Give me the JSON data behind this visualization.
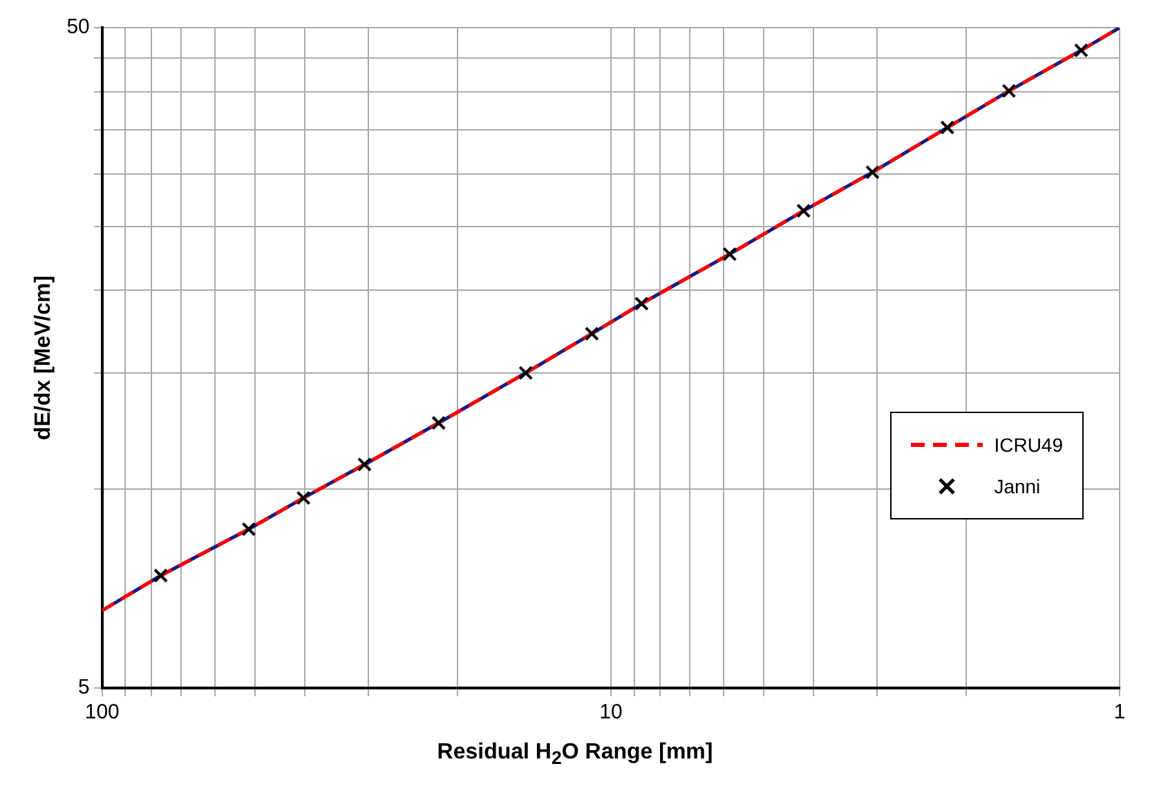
{
  "chart_data": {
    "type": "line",
    "xlabel": "Residual H$_{2}$O Range [mm]",
    "ylabel": "dE/dx [MeV/cm]",
    "log": "xy",
    "grid": true,
    "legend": "right",
    "xlim": [
      100,
      1
    ],
    "xticks": [
      100,
      {
        "value": 90,
        "label": null
      },
      {
        "value": 80,
        "label": null
      },
      {
        "value": 70,
        "label": null
      },
      {
        "value": 60,
        "label": null
      },
      {
        "value": 50,
        "label": null
      },
      {
        "value": 40,
        "label": null
      },
      {
        "value": 30,
        "label": null
      },
      {
        "value": 20,
        "label": null
      },
      10,
      {
        "value": 9,
        "label": null
      },
      {
        "value": 8,
        "label": null
      },
      {
        "value": 7,
        "label": null
      },
      {
        "value": 6,
        "label": null
      },
      {
        "value": 5,
        "label": null
      },
      {
        "value": 4,
        "label": null
      },
      {
        "value": 3,
        "label": null
      },
      {
        "value": 2,
        "label": null
      },
      1
    ],
    "ylim": [
      5,
      50
    ],
    "yticks": [
      5,
      {
        "value": 10,
        "label": null
      },
      {
        "value": 15,
        "label": null
      },
      {
        "value": 20,
        "label": null
      },
      {
        "value": 25,
        "label": null
      },
      {
        "value": 30,
        "label": null
      },
      {
        "value": 35,
        "label": null
      },
      {
        "value": 40,
        "label": null
      },
      {
        "value": 45,
        "label": null
      },
      50
    ],
    "series": [
      {
        "color": "#1a1a80",
        "line_style": "solid",
        "marker": "none",
        "x": [
          100,
          76.7,
          51.5,
          40.2,
          30.5,
          21.8,
          14.7,
          10.9,
          8.7,
          5.84,
          4.18,
          3.06,
          2.18,
          1.65,
          1.19,
          1
        ],
        "values": [
          6.55,
          7.4,
          8.7,
          9.7,
          10.9,
          12.6,
          15.0,
          17.2,
          19.1,
          22.7,
          26.4,
          30.2,
          35.3,
          40.1,
          46.2,
          50
        ]
      },
      {
        "name": "ICRU49",
        "color": "#ff0000",
        "line_style": "dashed",
        "marker": "none",
        "x": [
          100,
          76.7,
          51.5,
          40.2,
          30.5,
          21.8,
          14.7,
          10.9,
          8.7,
          5.84,
          4.18,
          3.06,
          2.18,
          1.65,
          1.19,
          1
        ],
        "values": [
          6.55,
          7.4,
          8.7,
          9.7,
          10.9,
          12.6,
          15.0,
          17.2,
          19.1,
          22.7,
          26.4,
          30.2,
          35.3,
          40.1,
          46.2,
          50
        ]
      },
      {
        "name": "Janni",
        "type": "scatter",
        "color": "#000000",
        "marker": "cross",
        "x": [
          76.7,
          51.5,
          40.2,
          30.5,
          21.8,
          14.7,
          10.9,
          8.7,
          5.84,
          4.18,
          3.06,
          2.18,
          1.65,
          1.19
        ],
        "values": [
          7.4,
          8.7,
          9.7,
          10.9,
          12.6,
          15.0,
          17.2,
          19.1,
          22.7,
          26.4,
          30.2,
          35.3,
          40.1,
          46.2
        ]
      }
    ]
  }
}
